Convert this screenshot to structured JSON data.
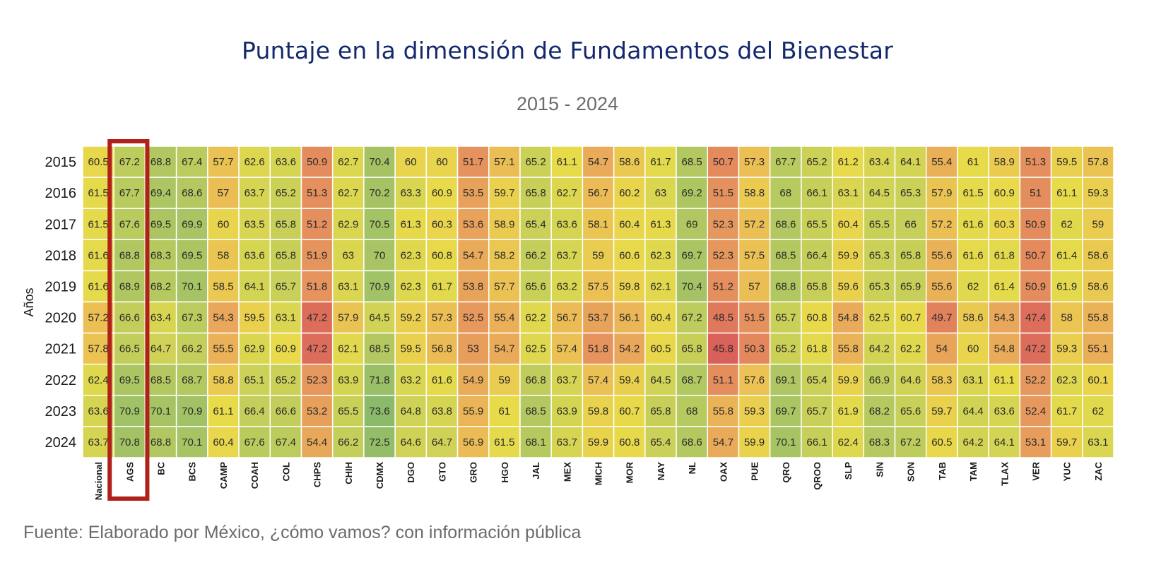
{
  "chart_data": {
    "type": "heatmap",
    "title": "Puntaje en la dimensión de Fundamentos del Bienestar",
    "subtitle": "2015 - 2024",
    "ylabel": "Años",
    "xlabel": "",
    "source": "Fuente: Elaborado por México, ¿cómo vamos? con información pública",
    "highlighted_column": "AGS",
    "highlight_color": "#b0211a",
    "color_scale": [
      "#d95a5a",
      "#e6955e",
      "#ebbd55",
      "#e8db4a",
      "#c6cf5a",
      "#a8c464",
      "#88b96b"
    ],
    "columns": [
      "Nacional",
      "AGS",
      "BC",
      "BCS",
      "CAMP",
      "COAH",
      "COL",
      "CHPS",
      "CHIH",
      "CDMX",
      "DGO",
      "GTO",
      "GRO",
      "HGO",
      "JAL",
      "MEX",
      "MICH",
      "MOR",
      "NAY",
      "NL",
      "OAX",
      "PUE",
      "QRO",
      "QROO",
      "SLP",
      "SIN",
      "SON",
      "TAB",
      "TAM",
      "TLAX",
      "VER",
      "YUC",
      "ZAC"
    ],
    "rows": [
      "2015",
      "2016",
      "2017",
      "2018",
      "2019",
      "2020",
      "2021",
      "2022",
      "2023",
      "2024"
    ],
    "values": [
      [
        60.5,
        67.2,
        68.8,
        67.4,
        57.7,
        62.6,
        63.6,
        50.9,
        62.7,
        70.4,
        60,
        60,
        51.7,
        57.1,
        65.2,
        61.1,
        54.7,
        58.6,
        61.7,
        68.5,
        50.7,
        57.3,
        67.7,
        65.2,
        61.2,
        63.4,
        64.1,
        55.4,
        61,
        58.9,
        51.3,
        59.5,
        57.8
      ],
      [
        61.5,
        67.7,
        69.4,
        68.6,
        57,
        63.7,
        65.2,
        51.3,
        62.7,
        70.2,
        63.3,
        60.9,
        53.5,
        59.7,
        65.8,
        62.7,
        56.7,
        60.2,
        63,
        69.2,
        51.5,
        58.8,
        68,
        66.1,
        63.1,
        64.5,
        65.3,
        57.9,
        61.5,
        60.9,
        51,
        61.1,
        59.3
      ],
      [
        61.5,
        67.6,
        69.5,
        69.9,
        60,
        63.5,
        65.8,
        51.2,
        62.9,
        70.5,
        61.3,
        60.3,
        53.6,
        58.9,
        65.4,
        63.6,
        58.1,
        60.4,
        61.3,
        69,
        52.3,
        57.2,
        68.6,
        65.5,
        60.4,
        65.5,
        66,
        57.2,
        61.6,
        60.3,
        50.9,
        62,
        59
      ],
      [
        61.6,
        68.8,
        68.3,
        69.5,
        58,
        63.6,
        65.8,
        51.9,
        63,
        70,
        62.3,
        60.8,
        54.7,
        58.2,
        66.2,
        63.7,
        59,
        60.6,
        62.3,
        69.7,
        52.3,
        57.5,
        68.5,
        66.4,
        59.9,
        65.3,
        65.8,
        55.6,
        61.6,
        61.8,
        50.7,
        61.4,
        58.6
      ],
      [
        61.6,
        68.9,
        68.2,
        70.1,
        58.5,
        64.1,
        65.7,
        51.8,
        63.1,
        70.9,
        62.3,
        61.7,
        53.8,
        57.7,
        65.6,
        63.2,
        57.5,
        59.8,
        62.1,
        70.4,
        51.2,
        57,
        68.8,
        65.8,
        59.6,
        65.3,
        65.9,
        55.6,
        62,
        61.4,
        50.9,
        61.9,
        58.6
      ],
      [
        57.2,
        66.6,
        63.4,
        67.3,
        54.3,
        59.5,
        63.1,
        47.2,
        57.9,
        64.5,
        59.2,
        57.3,
        52.5,
        55.4,
        62.2,
        56.7,
        53.7,
        56.1,
        60.4,
        67.2,
        48.5,
        51.5,
        65.7,
        60.8,
        54.8,
        62.5,
        60.7,
        49.7,
        58.6,
        54.3,
        47.4,
        58,
        55.8
      ],
      [
        57.8,
        66.5,
        64.7,
        66.2,
        55.5,
        62.9,
        60.9,
        47.2,
        62.1,
        68.5,
        59.5,
        56.8,
        53,
        54.7,
        62.5,
        57.4,
        51.8,
        54.2,
        60.5,
        65.8,
        45.8,
        50.3,
        65.2,
        61.8,
        55.8,
        64.2,
        62.2,
        54,
        60,
        54.8,
        47.2,
        59.3,
        55.1
      ],
      [
        62.4,
        69.5,
        68.5,
        68.7,
        58.8,
        65.1,
        65.2,
        52.3,
        63.9,
        71.8,
        63.2,
        61.6,
        54.9,
        59,
        66.8,
        63.7,
        57.4,
        59.4,
        64.5,
        68.7,
        51.1,
        57.6,
        69.1,
        65.4,
        59.9,
        66.9,
        64.6,
        58.3,
        63.1,
        61.1,
        52.2,
        62.3,
        60.1
      ],
      [
        63.6,
        70.9,
        70.1,
        70.9,
        61.1,
        66.4,
        66.6,
        53.2,
        65.5,
        73.6,
        64.8,
        63.8,
        55.9,
        61,
        68.5,
        63.9,
        59.8,
        60.7,
        65.8,
        68,
        55.8,
        59.3,
        69.7,
        65.7,
        61.9,
        68.2,
        65.6,
        59.7,
        64.4,
        63.6,
        52.4,
        61.7,
        62
      ],
      [
        63.7,
        70.8,
        68.8,
        70.1,
        60.4,
        67.6,
        67.4,
        54.4,
        66.2,
        72.5,
        64.6,
        64.7,
        56.9,
        61.5,
        68.1,
        63.7,
        59.9,
        60.8,
        65.4,
        68.6,
        54.7,
        59.9,
        70.1,
        66.1,
        62.4,
        68.3,
        67.2,
        60.5,
        64.2,
        64.1,
        53.1,
        59.7,
        63.1
      ]
    ]
  }
}
